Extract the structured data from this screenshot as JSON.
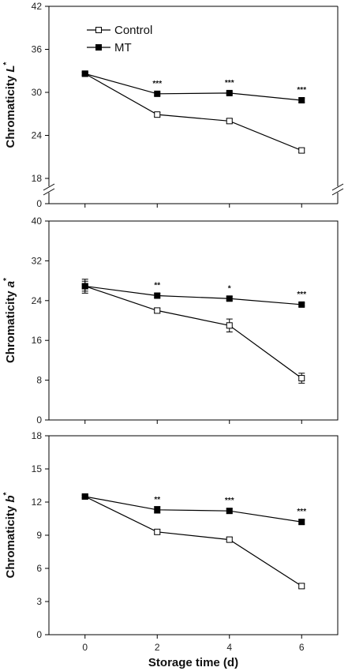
{
  "chart_data": [
    {
      "type": "line",
      "ylabel_main": "Chromaticity ",
      "ylabel_var": "L",
      "ylabel_sup": "*",
      "ylim": [
        18,
        42
      ],
      "yticks": [
        "18",
        "24",
        "30",
        "36",
        "42"
      ],
      "axis_break": true,
      "break_zero_label": "0",
      "x": [
        0,
        2,
        4,
        6
      ],
      "xlim": [
        -1,
        7
      ],
      "series": [
        {
          "name": "Control",
          "marker": "open-square",
          "values": [
            32.6,
            26.9,
            26.0,
            21.9
          ],
          "errors": [
            0.2,
            0.3,
            0.3,
            0.3
          ]
        },
        {
          "name": "MT",
          "marker": "filled-square",
          "values": [
            32.6,
            29.8,
            29.9,
            28.9
          ],
          "errors": [
            0.2,
            0.2,
            0.2,
            0.3
          ]
        }
      ],
      "significance": [
        {
          "x": 2,
          "text": "***"
        },
        {
          "x": 4,
          "text": "***"
        },
        {
          "x": 6,
          "text": "***"
        }
      ],
      "legend": {
        "placement": "top-left",
        "entries": [
          "Control",
          "MT"
        ]
      }
    },
    {
      "type": "line",
      "ylabel_main": "Chromaticity ",
      "ylabel_var": "a",
      "ylabel_sup": "*",
      "ylim": [
        0,
        40
      ],
      "yticks": [
        "0",
        "8",
        "16",
        "24",
        "32",
        "40"
      ],
      "x": [
        0,
        2,
        4,
        6
      ],
      "xlim": [
        -1,
        7
      ],
      "series": [
        {
          "name": "Control",
          "marker": "open-square",
          "values": [
            26.9,
            22.0,
            19.0,
            8.4
          ],
          "errors": [
            1.4,
            0.5,
            1.3,
            1.0
          ]
        },
        {
          "name": "MT",
          "marker": "filled-square",
          "values": [
            26.9,
            25.0,
            24.4,
            23.2
          ],
          "errors": [
            1.0,
            0.4,
            0.4,
            0.3
          ]
        }
      ],
      "significance": [
        {
          "x": 2,
          "text": "**"
        },
        {
          "x": 4,
          "text": "*"
        },
        {
          "x": 6,
          "text": "***"
        }
      ]
    },
    {
      "type": "line",
      "ylabel_main": "Chromaticity ",
      "ylabel_var": "b",
      "ylabel_sup": "*",
      "ylim": [
        0,
        18
      ],
      "yticks": [
        "0",
        "3",
        "6",
        "9",
        "12",
        "15",
        "18"
      ],
      "x": [
        0,
        2,
        4,
        6
      ],
      "xlim": [
        -1,
        7
      ],
      "xticks": [
        "0",
        "2",
        "4",
        "6"
      ],
      "xlabel": "Storage time (d)",
      "series": [
        {
          "name": "Control",
          "marker": "open-square",
          "values": [
            12.5,
            9.3,
            8.6,
            4.4
          ],
          "errors": [
            0.1,
            0.2,
            0.2,
            0.2
          ]
        },
        {
          "name": "MT",
          "marker": "filled-square",
          "values": [
            12.5,
            11.3,
            11.2,
            10.2
          ],
          "errors": [
            0.1,
            0.3,
            0.2,
            0.2
          ]
        }
      ],
      "significance": [
        {
          "x": 2,
          "text": "**"
        },
        {
          "x": 4,
          "text": "***"
        },
        {
          "x": 6,
          "text": "***"
        }
      ]
    }
  ]
}
